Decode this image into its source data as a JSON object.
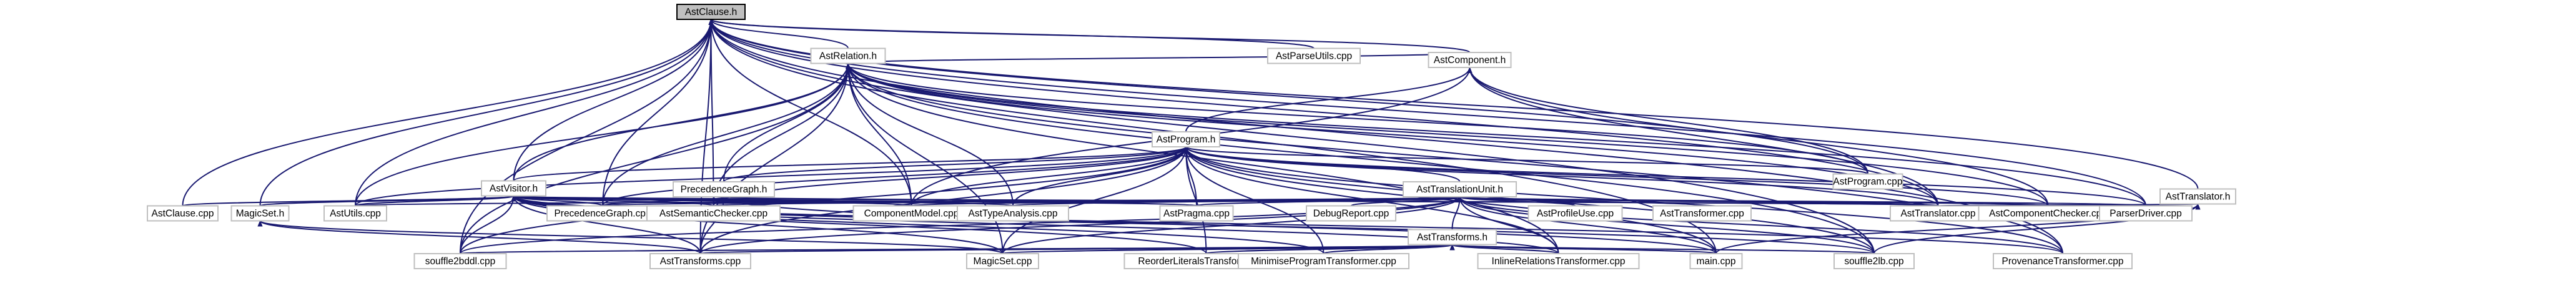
{
  "graph": {
    "nodes": [
      {
        "id": "astclause_h",
        "label": "AstClause.h",
        "root": true
      },
      {
        "id": "astrelation_h",
        "label": "AstRelation.h"
      },
      {
        "id": "astparseutils_cpp",
        "label": "AstParseUtils.cpp"
      },
      {
        "id": "astcomponent_h",
        "label": "AstComponent.h"
      },
      {
        "id": "astprogram_h",
        "label": "AstProgram.h"
      },
      {
        "id": "astprogram_cpp",
        "label": "AstProgram.cpp"
      },
      {
        "id": "asttranslator_h",
        "label": "AstTranslator.h"
      },
      {
        "id": "astvisitor_h",
        "label": "AstVisitor.h"
      },
      {
        "id": "precedencegraph_h",
        "label": "PrecedenceGraph.h"
      },
      {
        "id": "asttranslationunit_h",
        "label": "AstTranslationUnit.h"
      },
      {
        "id": "astclause_cpp",
        "label": "AstClause.cpp"
      },
      {
        "id": "magicset_h",
        "label": "MagicSet.h"
      },
      {
        "id": "astutils_cpp",
        "label": "AstUtils.cpp"
      },
      {
        "id": "precedencegraph_cpp",
        "label": "PrecedenceGraph.cpp"
      },
      {
        "id": "astsemanticchecker_cpp",
        "label": "AstSemanticChecker.cpp"
      },
      {
        "id": "componentmodel_cpp",
        "label": "ComponentModel.cpp"
      },
      {
        "id": "asttypeanalysis_cpp",
        "label": "AstTypeAnalysis.cpp"
      },
      {
        "id": "astpragma_cpp",
        "label": "AstPragma.cpp"
      },
      {
        "id": "debugreport_cpp",
        "label": "DebugReport.cpp"
      },
      {
        "id": "astprofileuse_cpp",
        "label": "AstProfileUse.cpp"
      },
      {
        "id": "asttransformer_cpp",
        "label": "AstTransformer.cpp"
      },
      {
        "id": "asttranslator_cpp",
        "label": "AstTranslator.cpp"
      },
      {
        "id": "astcomponentchecker_cpp",
        "label": "AstComponentChecker.cpp"
      },
      {
        "id": "parserdriver_cpp",
        "label": "ParserDriver.cpp"
      },
      {
        "id": "asttransforms_h",
        "label": "AstTransforms.h"
      },
      {
        "id": "souffle2bddl_cpp",
        "label": "souffle2bddl.cpp"
      },
      {
        "id": "asttransforms_cpp",
        "label": "AstTransforms.cpp"
      },
      {
        "id": "magicset_cpp",
        "label": "MagicSet.cpp"
      },
      {
        "id": "reorderliteralstransformer_cpp",
        "label": "ReorderLiteralsTransformer.cpp"
      },
      {
        "id": "minimiseprogramtransformer_cpp",
        "label": "MinimiseProgramTransformer.cpp"
      },
      {
        "id": "inlinerelationstransformer_cpp",
        "label": "InlineRelationsTransformer.cpp"
      },
      {
        "id": "main_cpp",
        "label": "main.cpp"
      },
      {
        "id": "souffle2lb_cpp",
        "label": "souffle2lb.cpp"
      },
      {
        "id": "provenancetransformer_cpp",
        "label": "ProvenanceTransformer.cpp"
      }
    ],
    "edges": [
      [
        "astclause_h",
        "astrelation_h"
      ],
      [
        "astclause_h",
        "astparseutils_cpp"
      ],
      [
        "astclause_h",
        "astcomponent_h"
      ],
      [
        "astclause_h",
        "astprogram_cpp"
      ],
      [
        "astclause_h",
        "asttranslator_h"
      ],
      [
        "astclause_h",
        "astvisitor_h"
      ],
      [
        "astclause_h",
        "astclause_cpp"
      ],
      [
        "astclause_h",
        "magicset_h"
      ],
      [
        "astclause_h",
        "astutils_cpp"
      ],
      [
        "astclause_h",
        "astsemanticchecker_cpp"
      ],
      [
        "astclause_h",
        "componentmodel_cpp"
      ],
      [
        "astclause_h",
        "asttranslator_cpp"
      ],
      [
        "astclause_h",
        "parserdriver_cpp"
      ],
      [
        "astclause_h",
        "souffle2bddl_cpp"
      ],
      [
        "astclause_h",
        "asttransforms_cpp"
      ],
      [
        "astclause_h",
        "main_cpp"
      ],
      [
        "astclause_h",
        "souffle2lb_cpp"
      ],
      [
        "astclause_h",
        "provenancetransformer_cpp"
      ],
      [
        "astclause_h",
        "precedencegraph_cpp"
      ],
      [
        "astrelation_h",
        "astcomponent_h"
      ],
      [
        "astrelation_h",
        "astprogram_cpp"
      ],
      [
        "astrelation_h",
        "astvisitor_h"
      ],
      [
        "astrelation_h",
        "precedencegraph_h"
      ],
      [
        "astrelation_h",
        "astutils_cpp"
      ],
      [
        "astrelation_h",
        "precedencegraph_cpp"
      ],
      [
        "astrelation_h",
        "astsemanticchecker_cpp"
      ],
      [
        "astrelation_h",
        "componentmodel_cpp"
      ],
      [
        "astrelation_h",
        "asttypeanalysis_cpp"
      ],
      [
        "astrelation_h",
        "asttranslator_cpp"
      ],
      [
        "astrelation_h",
        "astcomponentchecker_cpp"
      ],
      [
        "astrelation_h",
        "parserdriver_cpp"
      ],
      [
        "astrelation_h",
        "souffle2bddl_cpp"
      ],
      [
        "astrelation_h",
        "asttransforms_cpp"
      ],
      [
        "astrelation_h",
        "magicset_cpp"
      ],
      [
        "astrelation_h",
        "inlinerelationstransformer_cpp"
      ],
      [
        "astrelation_h",
        "souffle2lb_cpp"
      ],
      [
        "astrelation_h",
        "provenancetransformer_cpp"
      ],
      [
        "astcomponent_h",
        "astprogram_h"
      ],
      [
        "astcomponent_h",
        "astprogram_cpp"
      ],
      [
        "astcomponent_h",
        "asttranslator_cpp"
      ],
      [
        "astcomponent_h",
        "astcomponentchecker_cpp"
      ],
      [
        "astcomponent_h",
        "componentmodel_cpp"
      ],
      [
        "astprogram_h",
        "astprogram_cpp"
      ],
      [
        "astprogram_h",
        "astvisitor_h"
      ],
      [
        "astprogram_h",
        "precedencegraph_h"
      ],
      [
        "astprogram_h",
        "asttranslationunit_h"
      ],
      [
        "astprogram_h",
        "astutils_cpp"
      ],
      [
        "astprogram_h",
        "precedencegraph_cpp"
      ],
      [
        "astprogram_h",
        "astsemanticchecker_cpp"
      ],
      [
        "astprogram_h",
        "componentmodel_cpp"
      ],
      [
        "astprogram_h",
        "asttypeanalysis_cpp"
      ],
      [
        "astprogram_h",
        "astpragma_cpp"
      ],
      [
        "astprogram_h",
        "asttranslator_cpp"
      ],
      [
        "astprogram_h",
        "astcomponentchecker_cpp"
      ],
      [
        "astprogram_h",
        "parserdriver_cpp"
      ],
      [
        "astprogram_h",
        "asttransforms_cpp"
      ],
      [
        "astprogram_h",
        "magicset_cpp"
      ],
      [
        "astprogram_h",
        "reorderliteralstransformer_cpp"
      ],
      [
        "astprogram_h",
        "minimiseprogramtransformer_cpp"
      ],
      [
        "astprogram_h",
        "inlinerelationstransformer_cpp"
      ],
      [
        "astprogram_h",
        "souffle2bddl_cpp"
      ],
      [
        "astprogram_h",
        "souffle2lb_cpp"
      ],
      [
        "astprogram_h",
        "provenancetransformer_cpp"
      ],
      [
        "astprogram_h",
        "main_cpp"
      ],
      [
        "asttranslator_h",
        "asttranslator_cpp"
      ],
      [
        "asttranslator_h",
        "main_cpp"
      ],
      [
        "asttranslator_h",
        "souffle2lb_cpp"
      ],
      [
        "astvisitor_h",
        "astclause_cpp"
      ],
      [
        "astvisitor_h",
        "magicset_h"
      ],
      [
        "astvisitor_h",
        "astutils_cpp"
      ],
      [
        "astvisitor_h",
        "precedencegraph_cpp"
      ],
      [
        "astvisitor_h",
        "astsemanticchecker_cpp"
      ],
      [
        "astvisitor_h",
        "componentmodel_cpp"
      ],
      [
        "astvisitor_h",
        "asttypeanalysis_cpp"
      ],
      [
        "astvisitor_h",
        "astpragma_cpp"
      ],
      [
        "astvisitor_h",
        "asttranslator_cpp"
      ],
      [
        "astvisitor_h",
        "souffle2bddl_cpp"
      ],
      [
        "astvisitor_h",
        "asttransforms_cpp"
      ],
      [
        "astvisitor_h",
        "magicset_cpp"
      ],
      [
        "astvisitor_h",
        "reorderliteralstransformer_cpp"
      ],
      [
        "astvisitor_h",
        "minimiseprogramtransformer_cpp"
      ],
      [
        "astvisitor_h",
        "inlinerelationstransformer_cpp"
      ],
      [
        "astvisitor_h",
        "souffle2lb_cpp"
      ],
      [
        "astvisitor_h",
        "provenancetransformer_cpp"
      ],
      [
        "precedencegraph_h",
        "precedencegraph_cpp"
      ],
      [
        "precedencegraph_h",
        "astsemanticchecker_cpp"
      ],
      [
        "precedencegraph_h",
        "asttransforms_cpp"
      ],
      [
        "precedencegraph_h",
        "asttranslator_cpp"
      ],
      [
        "precedencegraph_h",
        "main_cpp"
      ],
      [
        "asttranslationunit_h",
        "astutils_cpp"
      ],
      [
        "asttranslationunit_h",
        "precedencegraph_cpp"
      ],
      [
        "asttranslationunit_h",
        "astsemanticchecker_cpp"
      ],
      [
        "asttranslationunit_h",
        "componentmodel_cpp"
      ],
      [
        "asttranslationunit_h",
        "asttypeanalysis_cpp"
      ],
      [
        "asttranslationunit_h",
        "astpragma_cpp"
      ],
      [
        "asttranslationunit_h",
        "debugreport_cpp"
      ],
      [
        "asttranslationunit_h",
        "astprofileuse_cpp"
      ],
      [
        "asttranslationunit_h",
        "asttransformer_cpp"
      ],
      [
        "asttranslationunit_h",
        "asttranslator_cpp"
      ],
      [
        "asttranslationunit_h",
        "astcomponentchecker_cpp"
      ],
      [
        "asttranslationunit_h",
        "parserdriver_cpp"
      ],
      [
        "asttranslationunit_h",
        "asttransforms_h"
      ],
      [
        "asttranslationunit_h",
        "souffle2bddl_cpp"
      ],
      [
        "asttranslationunit_h",
        "asttransforms_cpp"
      ],
      [
        "asttranslationunit_h",
        "main_cpp"
      ],
      [
        "asttranslationunit_h",
        "souffle2lb_cpp"
      ],
      [
        "asttranslationunit_h",
        "provenancetransformer_cpp"
      ],
      [
        "asttranslationunit_h",
        "inlinerelationstransformer_cpp"
      ],
      [
        "asttranslationunit_h",
        "magicset_cpp"
      ],
      [
        "magicset_h",
        "magicset_cpp"
      ],
      [
        "magicset_h",
        "asttransforms_cpp"
      ],
      [
        "asttransforms_h",
        "asttransforms_cpp"
      ],
      [
        "asttransforms_h",
        "magicset_cpp"
      ],
      [
        "asttransforms_h",
        "reorderliteralstransformer_cpp"
      ],
      [
        "asttransforms_h",
        "minimiseprogramtransformer_cpp"
      ],
      [
        "asttransforms_h",
        "inlinerelationstransformer_cpp"
      ],
      [
        "asttransforms_h",
        "main_cpp"
      ],
      [
        "asttransforms_h",
        "souffle2bddl_cpp"
      ],
      [
        "asttransforms_h",
        "souffle2lb_cpp"
      ]
    ]
  }
}
